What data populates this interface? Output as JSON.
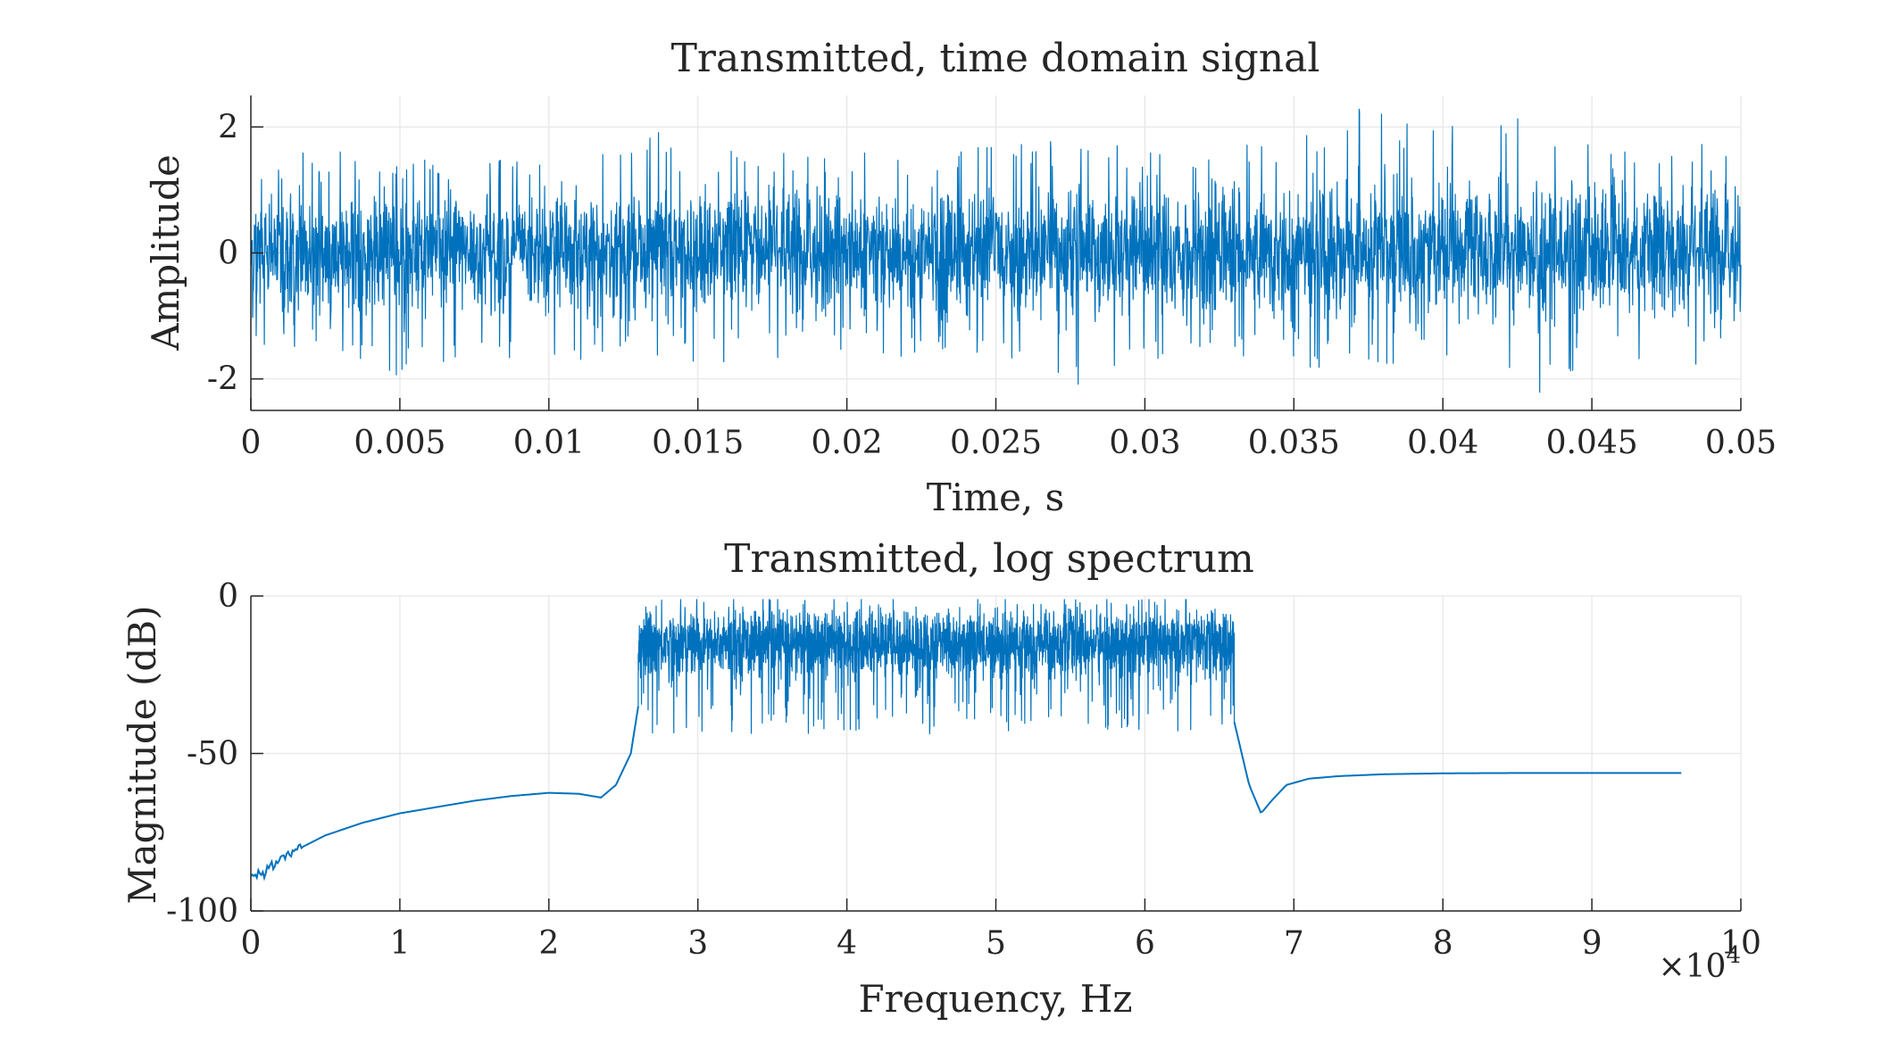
{
  "chart_data": [
    {
      "type": "line",
      "title": "Transmitted, time domain signal",
      "xlabel": "Time, s",
      "ylabel": "Amplitude",
      "xlim": [
        0,
        0.05
      ],
      "ylim": [
        -2.5,
        2.5
      ],
      "xticks": [
        0,
        0.005,
        0.01,
        0.015,
        0.02,
        0.025,
        0.03,
        0.035,
        0.04,
        0.045,
        0.05
      ],
      "xtick_labels": [
        "0",
        "0.005",
        "0.01",
        "0.015",
        "0.02",
        "0.025",
        "0.03",
        "0.035",
        "0.04",
        "0.045",
        "0.05"
      ],
      "yticks": [
        -2,
        0,
        2
      ],
      "ytick_labels": [
        "-2",
        "0",
        "2"
      ],
      "grid": true,
      "series": [
        {
          "color": "#0072BD",
          "x": [
            0,
            0.0025,
            0.005,
            0.0075,
            0.01,
            0.0125,
            0.015,
            0.0175,
            0.02,
            0.0225,
            0.025,
            0.0275,
            0.03,
            0.0325,
            0.035,
            0.0375,
            0.04,
            0.0425,
            0.045,
            0.0475,
            0.05
          ],
          "upper_envelope": [
            1.4,
            1.7,
            1.6,
            1.7,
            1.5,
            1.8,
            2.1,
            1.6,
            1.7,
            1.6,
            1.7,
            1.8,
            1.7,
            1.6,
            2.0,
            2.4,
            2.0,
            2.5,
            1.8,
            1.9,
            1.6
          ],
          "lower_envelope": [
            -1.6,
            -1.7,
            -2.0,
            -1.7,
            -1.8,
            -1.6,
            -1.8,
            -1.7,
            -1.6,
            -1.7,
            -1.8,
            -2.2,
            -1.7,
            -1.6,
            -1.8,
            -1.9,
            -2.1,
            -2.4,
            -1.9,
            -1.8,
            -1.8
          ],
          "typical_amplitude": 0.5
        }
      ]
    },
    {
      "type": "line",
      "title": "Transmitted, log spectrum",
      "xlabel": "Frequency, Hz",
      "ylabel": "Magnitude (dB)",
      "x_multiplier_label": "×10",
      "x_multiplier_exponent": "4",
      "xlim": [
        0,
        10
      ],
      "ylim": [
        -100,
        0
      ],
      "xticks": [
        0,
        1,
        2,
        3,
        4,
        5,
        6,
        7,
        8,
        9,
        10
      ],
      "xtick_labels": [
        "0",
        "1",
        "2",
        "3",
        "4",
        "5",
        "6",
        "7",
        "8",
        "9",
        "10"
      ],
      "yticks": [
        -100,
        -50,
        0
      ],
      "ytick_labels": [
        "-100",
        "-50",
        "0"
      ],
      "grid": true,
      "series": [
        {
          "color": "#0072BD",
          "x": [
            0,
            0.1,
            0.25,
            0.5,
            0.75,
            1.0,
            1.25,
            1.5,
            1.75,
            2.0,
            2.2,
            2.35,
            2.45,
            2.55,
            2.6
          ],
          "y": [
            -89,
            -87,
            -82,
            -76,
            -72,
            -69,
            -67,
            -65,
            -63.5,
            -62.5,
            -62.8,
            -64,
            -60,
            -50,
            -35
          ],
          "passband": {
            "x_start": 2.6,
            "x_end": 6.6,
            "y_top": -1,
            "y_mean": -15,
            "y_bottom": -44
          },
          "x2": [
            6.6,
            6.65,
            6.7,
            6.78,
            6.85,
            6.95,
            7.1,
            7.3,
            7.6,
            8.0,
            8.5,
            9.0,
            9.6
          ],
          "y2": [
            -40,
            -50,
            -60,
            -69,
            -65,
            -60,
            -58,
            -57.2,
            -56.6,
            -56.3,
            -56.2,
            -56.2,
            -56.2
          ]
        }
      ]
    }
  ]
}
